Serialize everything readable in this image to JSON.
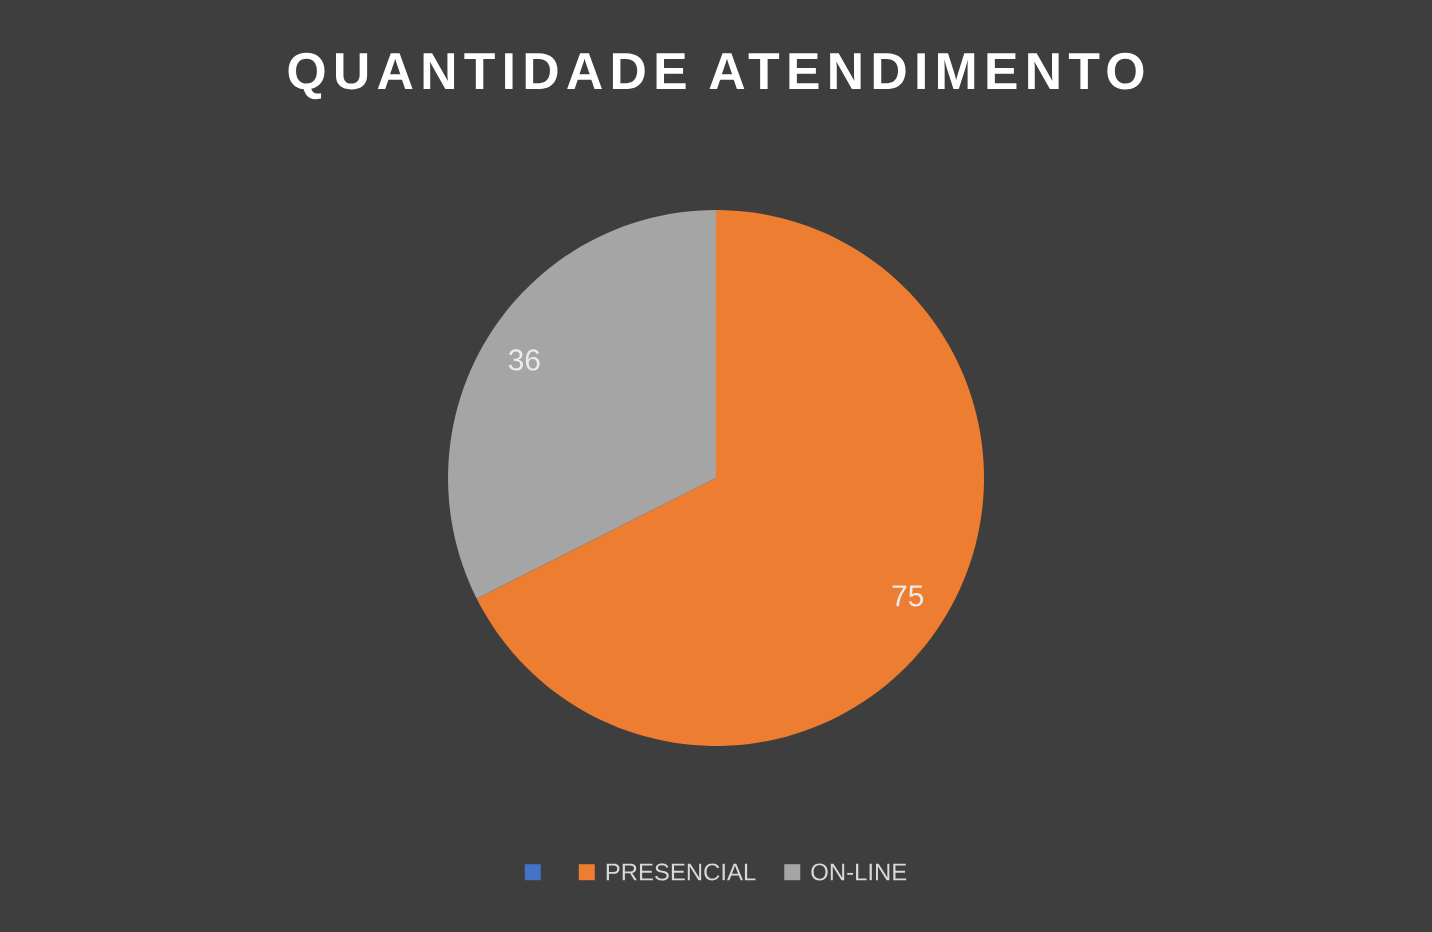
{
  "chart_data": {
    "type": "pie",
    "title": "QUANTIDADE ATENDIMENTO",
    "categories": [
      null,
      "PRESENCIAL",
      "ON-LINE"
    ],
    "values": [
      null,
      75,
      36
    ],
    "colors": [
      "#4472c4",
      "#ed7d31",
      "#a5a5a5"
    ],
    "data_labels": true,
    "legend": "bottom"
  }
}
